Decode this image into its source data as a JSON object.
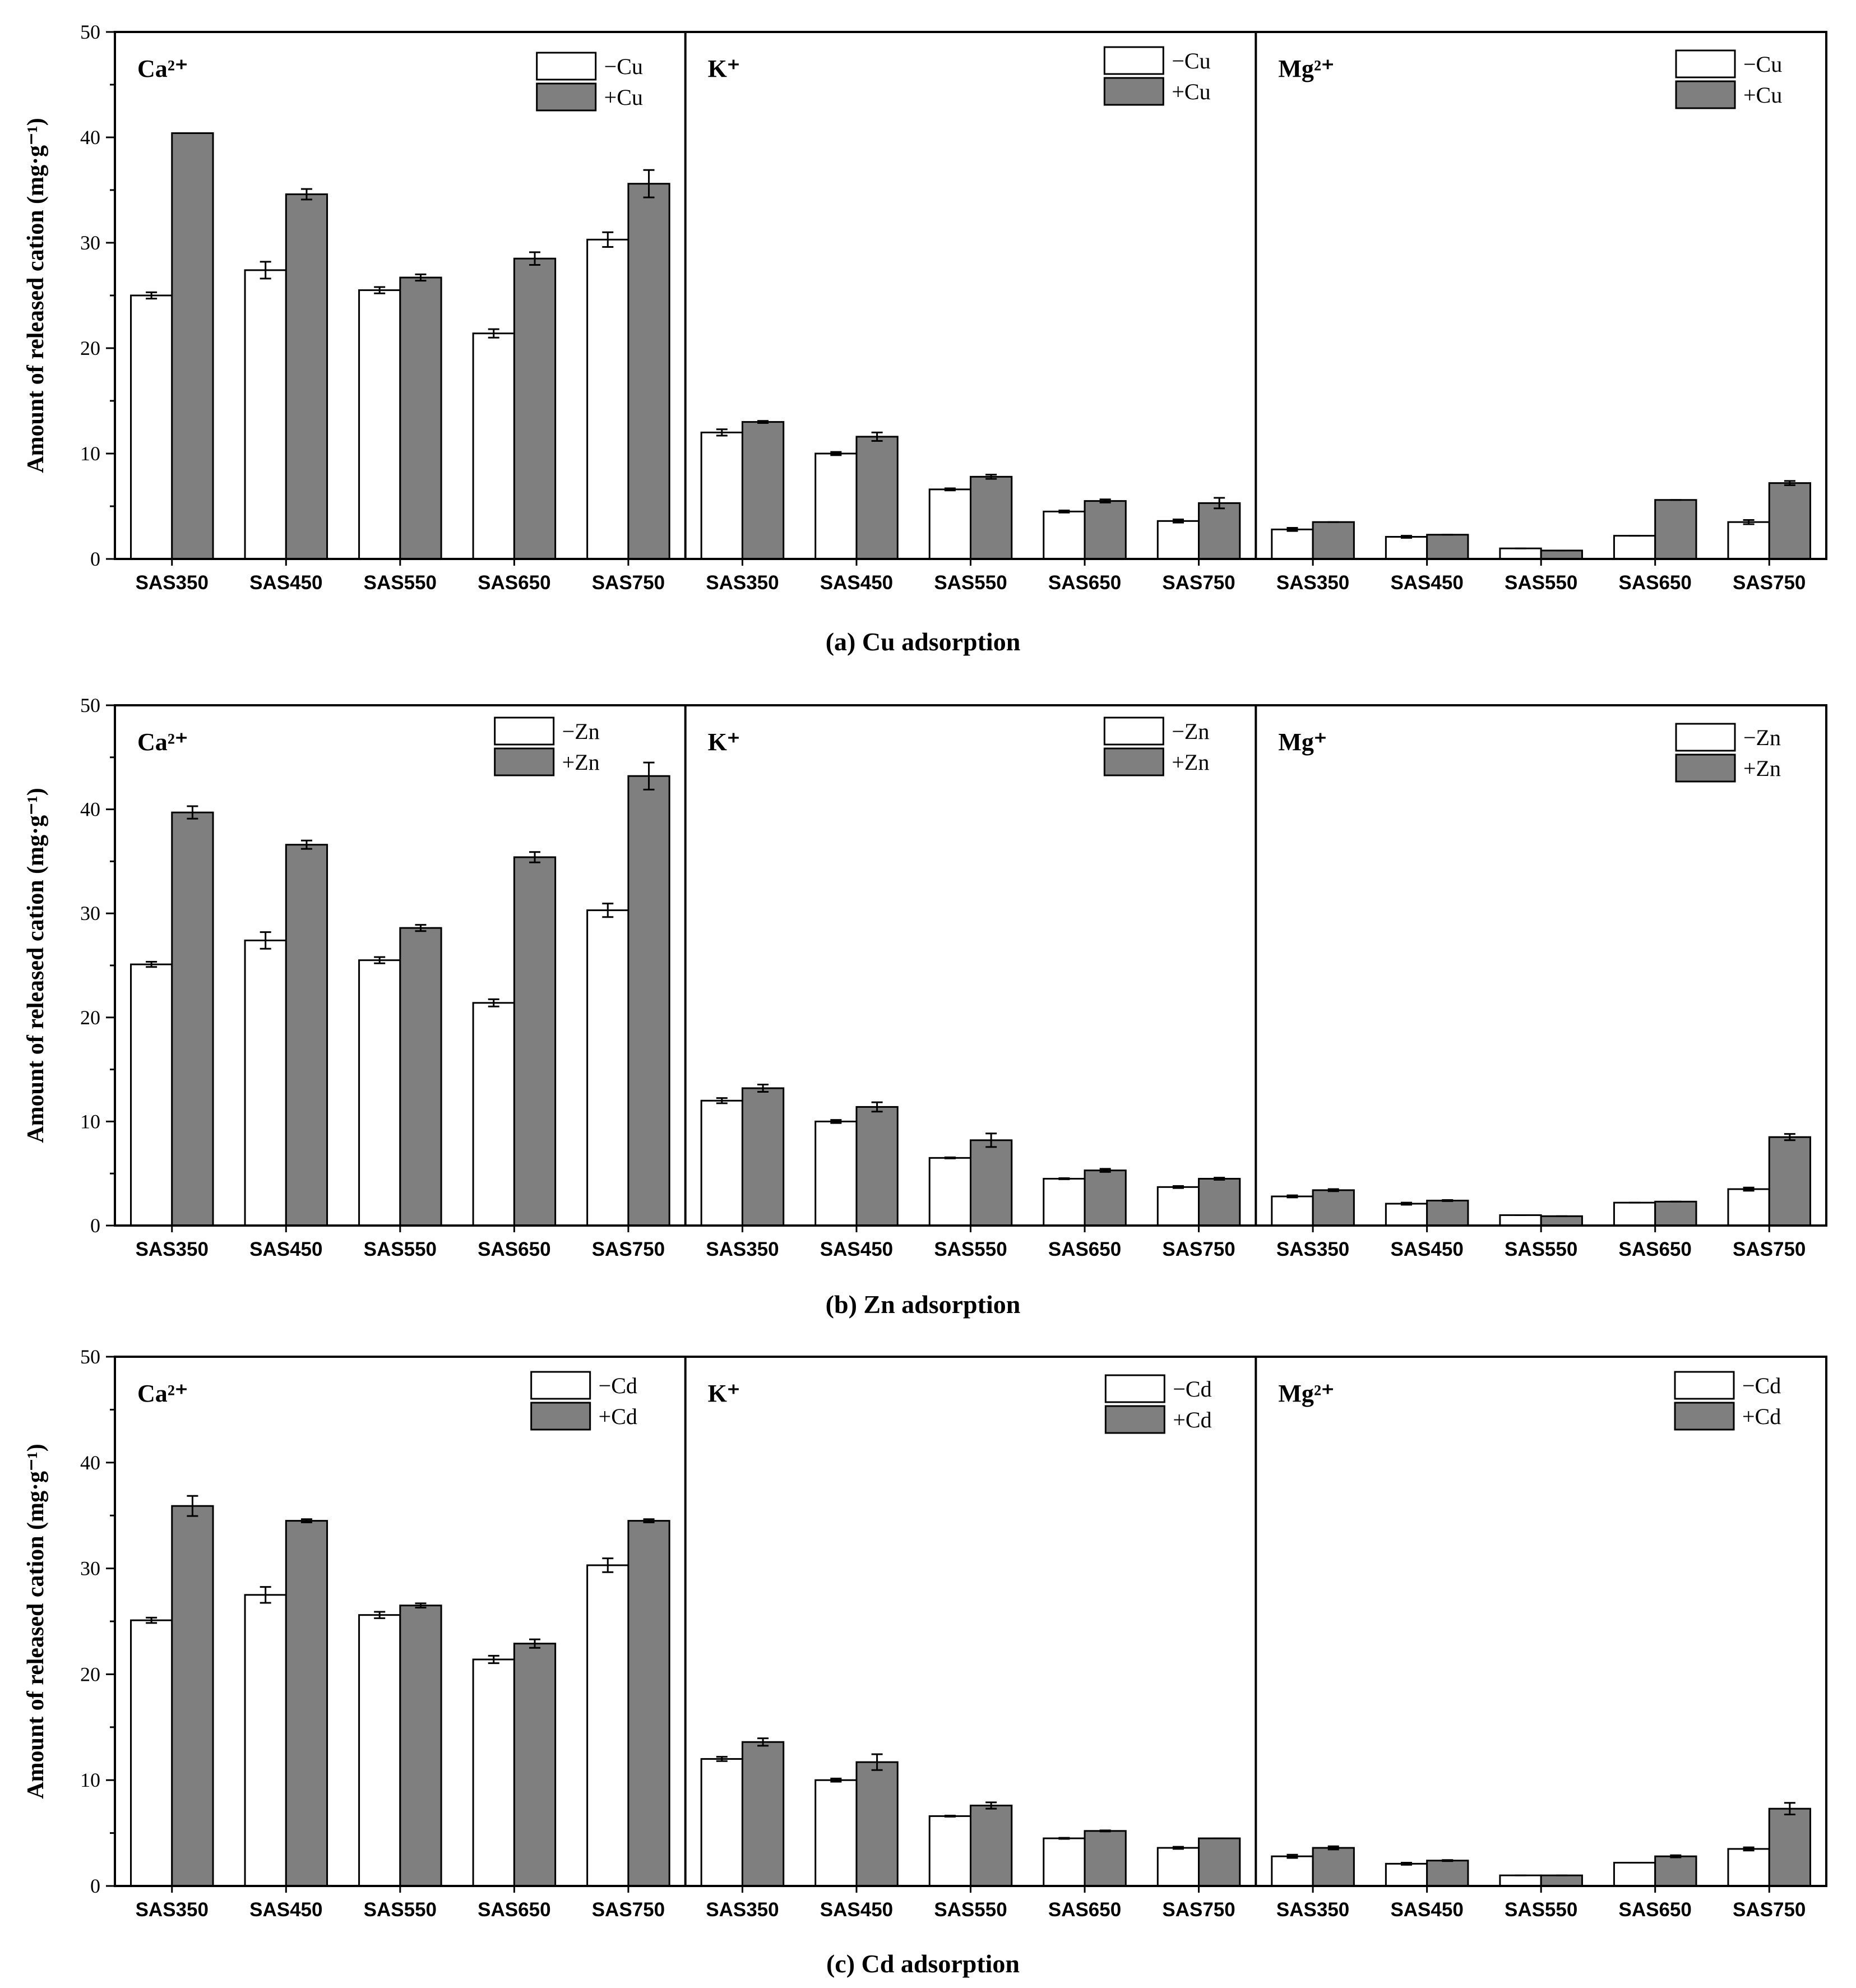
{
  "chart_data": [
    {
      "type": "bar",
      "caption": "(a)  Cu adsorption",
      "ylabel": "Amount of released cation (mg·g⁻¹)",
      "ylim": [
        0,
        50
      ],
      "yticks": [
        0,
        10,
        20,
        30,
        40,
        50
      ],
      "categories": [
        "SAS350",
        "SAS450",
        "SAS550",
        "SAS650",
        "SAS750"
      ],
      "legend": [
        "−Cu",
        "+Cu"
      ],
      "colors": [
        "#ffffff",
        "#7f7f7f"
      ],
      "panels": [
        {
          "ion": "Ca²⁺",
          "series": [
            {
              "name": "−Cu",
              "values": [
                25.0,
                27.4,
                25.5,
                21.4,
                30.3
              ],
              "errors": [
                0.3,
                0.8,
                0.3,
                0.4,
                0.7
              ]
            },
            {
              "name": "+Cu",
              "values": [
                40.4,
                34.6,
                26.7,
                28.5,
                35.6
              ],
              "errors": [
                0.0,
                0.5,
                0.3,
                0.6,
                1.3
              ]
            }
          ]
        },
        {
          "ion": "K⁺",
          "series": [
            {
              "name": "−Cu",
              "values": [
                12.0,
                10.0,
                6.6,
                4.5,
                3.6
              ],
              "errors": [
                0.3,
                0.15,
                0.1,
                0.1,
                0.15
              ]
            },
            {
              "name": "+Cu",
              "values": [
                13.0,
                11.6,
                7.8,
                5.5,
                5.3
              ],
              "errors": [
                0.1,
                0.4,
                0.2,
                0.15,
                0.5
              ]
            }
          ]
        },
        {
          "ion": "Mg²⁺",
          "series": [
            {
              "name": "−Cu",
              "values": [
                2.8,
                2.1,
                1.0,
                2.2,
                3.5
              ],
              "errors": [
                0.15,
                0.1,
                0.0,
                0.0,
                0.2
              ]
            },
            {
              "name": "+Cu",
              "values": [
                3.5,
                2.3,
                0.8,
                5.6,
                7.2
              ],
              "errors": [
                0.0,
                0.0,
                0.0,
                0.0,
                0.2
              ]
            }
          ]
        }
      ]
    },
    {
      "type": "bar",
      "caption": "(b)  Zn adsorption",
      "ylabel": "Amount of released cation (mg·g⁻¹)",
      "ylim": [
        0,
        50
      ],
      "yticks": [
        0,
        10,
        20,
        30,
        40,
        50
      ],
      "categories": [
        "SAS350",
        "SAS450",
        "SAS550",
        "SAS650",
        "SAS750"
      ],
      "legend": [
        "−Zn",
        "+Zn"
      ],
      "colors": [
        "#ffffff",
        "#7f7f7f"
      ],
      "panels": [
        {
          "ion": "Ca²⁺",
          "series": [
            {
              "name": "−Zn",
              "values": [
                25.1,
                27.4,
                25.5,
                21.4,
                30.3
              ],
              "errors": [
                0.25,
                0.8,
                0.3,
                0.35,
                0.65
              ]
            },
            {
              "name": "+Zn",
              "values": [
                39.7,
                36.6,
                28.6,
                35.4,
                43.2
              ],
              "errors": [
                0.6,
                0.4,
                0.3,
                0.5,
                1.3
              ]
            }
          ]
        },
        {
          "ion": "K⁺",
          "series": [
            {
              "name": "−Zn",
              "values": [
                12.0,
                10.0,
                6.5,
                4.5,
                3.7
              ],
              "errors": [
                0.25,
                0.15,
                0.05,
                0.05,
                0.1
              ]
            },
            {
              "name": "+Zn",
              "values": [
                13.2,
                11.4,
                8.2,
                5.3,
                4.5
              ],
              "errors": [
                0.35,
                0.45,
                0.65,
                0.15,
                0.1
              ]
            }
          ]
        },
        {
          "ion": "Mg⁺",
          "series": [
            {
              "name": "−Zn",
              "values": [
                2.8,
                2.1,
                1.0,
                2.2,
                3.5
              ],
              "errors": [
                0.1,
                0.1,
                0.0,
                0.0,
                0.15
              ]
            },
            {
              "name": "+Zn",
              "values": [
                3.4,
                2.4,
                0.9,
                2.3,
                8.5
              ],
              "errors": [
                0.1,
                0.05,
                0.0,
                0.0,
                0.3
              ]
            }
          ]
        }
      ]
    },
    {
      "type": "bar",
      "caption": "(c)  Cd adsorption",
      "ylabel": "Amount of released cation (mg·g⁻¹)",
      "ylim": [
        0,
        50
      ],
      "yticks": [
        0,
        10,
        20,
        30,
        40,
        50
      ],
      "categories": [
        "SAS350",
        "SAS450",
        "SAS550",
        "SAS650",
        "SAS750"
      ],
      "legend": [
        "−Cd",
        "+Cd"
      ],
      "colors": [
        "#ffffff",
        "#7f7f7f"
      ],
      "panels": [
        {
          "ion": "Ca²⁺",
          "series": [
            {
              "name": "−Cd",
              "values": [
                25.1,
                27.5,
                25.6,
                21.4,
                30.3
              ],
              "errors": [
                0.25,
                0.75,
                0.3,
                0.35,
                0.65
              ]
            },
            {
              "name": "+Cd",
              "values": [
                35.9,
                34.5,
                26.5,
                22.9,
                34.5
              ],
              "errors": [
                0.95,
                0.15,
                0.2,
                0.4,
                0.15
              ]
            }
          ]
        },
        {
          "ion": "K⁺",
          "series": [
            {
              "name": "−Cd",
              "values": [
                12.0,
                10.0,
                6.6,
                4.5,
                3.6
              ],
              "errors": [
                0.2,
                0.15,
                0.05,
                0.05,
                0.1
              ]
            },
            {
              "name": "+Cd",
              "values": [
                13.6,
                11.7,
                7.6,
                5.2,
                4.5
              ],
              "errors": [
                0.35,
                0.75,
                0.3,
                0.05,
                0.0
              ]
            }
          ]
        },
        {
          "ion": "Mg²⁺",
          "series": [
            {
              "name": "−Cd",
              "values": [
                2.8,
                2.1,
                1.0,
                2.2,
                3.5
              ],
              "errors": [
                0.15,
                0.1,
                0.0,
                0.0,
                0.15
              ]
            },
            {
              "name": "+Cd",
              "values": [
                3.6,
                2.4,
                1.0,
                2.8,
                7.3
              ],
              "errors": [
                0.15,
                0.05,
                0.0,
                0.1,
                0.55
              ]
            }
          ]
        }
      ]
    }
  ]
}
